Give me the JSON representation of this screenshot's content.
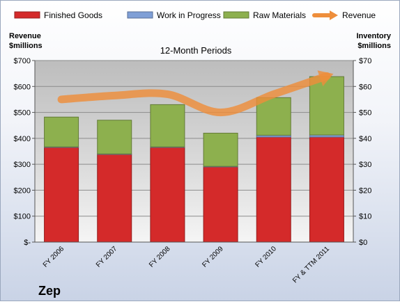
{
  "chart_data": {
    "type": "bar",
    "stacked": true,
    "title": "12-Month Periods",
    "company": "Zep",
    "categories": [
      "FY 2006",
      "FY 2007",
      "FY 2008",
      "FY 2009",
      "FY 2010",
      "FY & TTM 2011"
    ],
    "series": [
      {
        "name": "Finished Goods",
        "axis": "right",
        "color": "#d42a2a",
        "values": [
          36.5,
          33.8,
          36.5,
          29.0,
          40.5,
          40.5
        ]
      },
      {
        "name": "Work in Progress",
        "axis": "right",
        "color": "#7f9fd6",
        "values": [
          0.2,
          0.2,
          0.2,
          0.2,
          0.7,
          0.8
        ]
      },
      {
        "name": "Raw Materials",
        "axis": "right",
        "color": "#8db04e",
        "values": [
          11.5,
          13.0,
          16.3,
          12.8,
          14.5,
          22.5
        ]
      },
      {
        "name": "Revenue",
        "axis": "left",
        "type": "line",
        "color": "#ee8e3b",
        "values": [
          550,
          565,
          570,
          500,
          570,
          640
        ]
      }
    ],
    "left_axis": {
      "label_line1": "Revenue",
      "label_line2": "$millions",
      "min": 0,
      "max": 700,
      "step": 100,
      "ticks": [
        "$-",
        "$100",
        "$200",
        "$300",
        "$400",
        "$500",
        "$600",
        "$700"
      ]
    },
    "right_axis": {
      "label_line1": "Inventory",
      "label_line2": "$millions",
      "min": 0,
      "max": 70,
      "step": 10,
      "ticks": [
        "$0",
        "$10",
        "$20",
        "$30",
        "$40",
        "$50",
        "$60",
        "$70"
      ]
    },
    "legend": {
      "position": "top"
    },
    "grid": true
  }
}
